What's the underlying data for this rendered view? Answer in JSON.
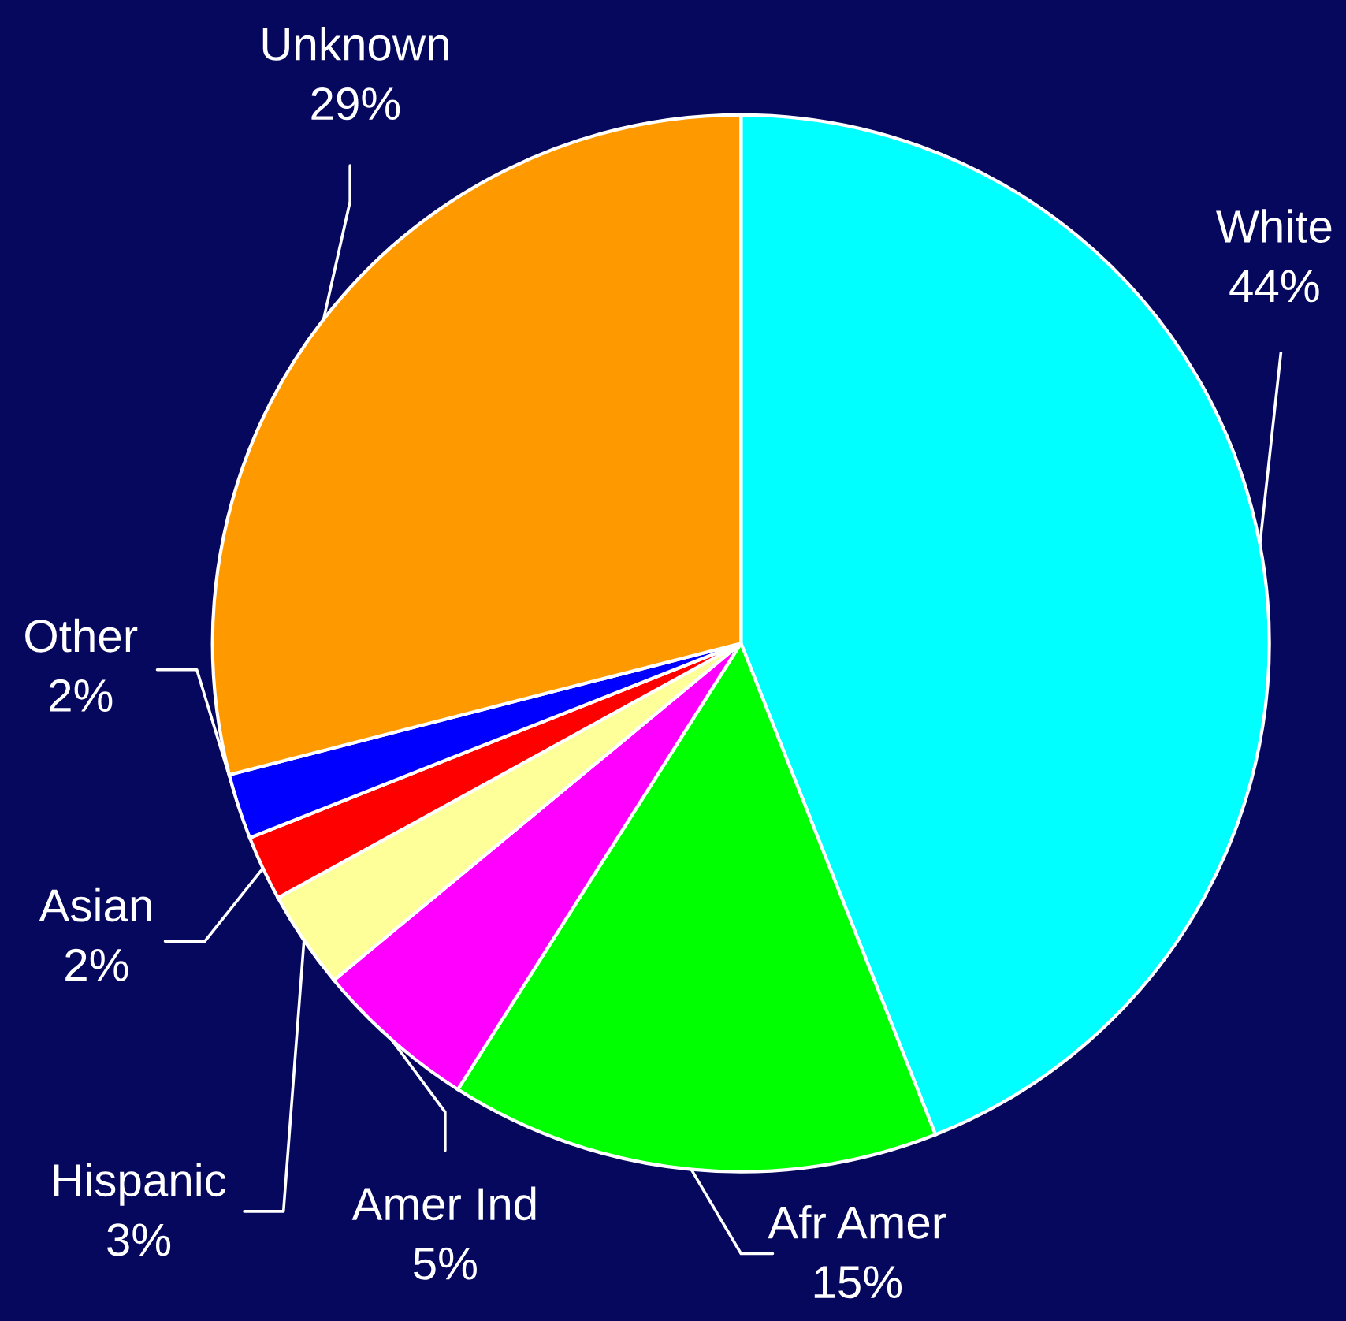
{
  "chart_data": {
    "type": "pie",
    "categories": [
      "White",
      "Afr Amer",
      "Amer Ind",
      "Hispanic",
      "Asian",
      "Other",
      "Unknown"
    ],
    "values": [
      44,
      15,
      5,
      3,
      2,
      2,
      29
    ],
    "value_labels": [
      "44%",
      "15%",
      "5%",
      "3%",
      "2%",
      "2%",
      "29%"
    ],
    "colors": [
      "#00ffff",
      "#00ff00",
      "#ff00ff",
      "#ffff99",
      "#ff0000",
      "#0000ff",
      "#ff9900"
    ]
  }
}
